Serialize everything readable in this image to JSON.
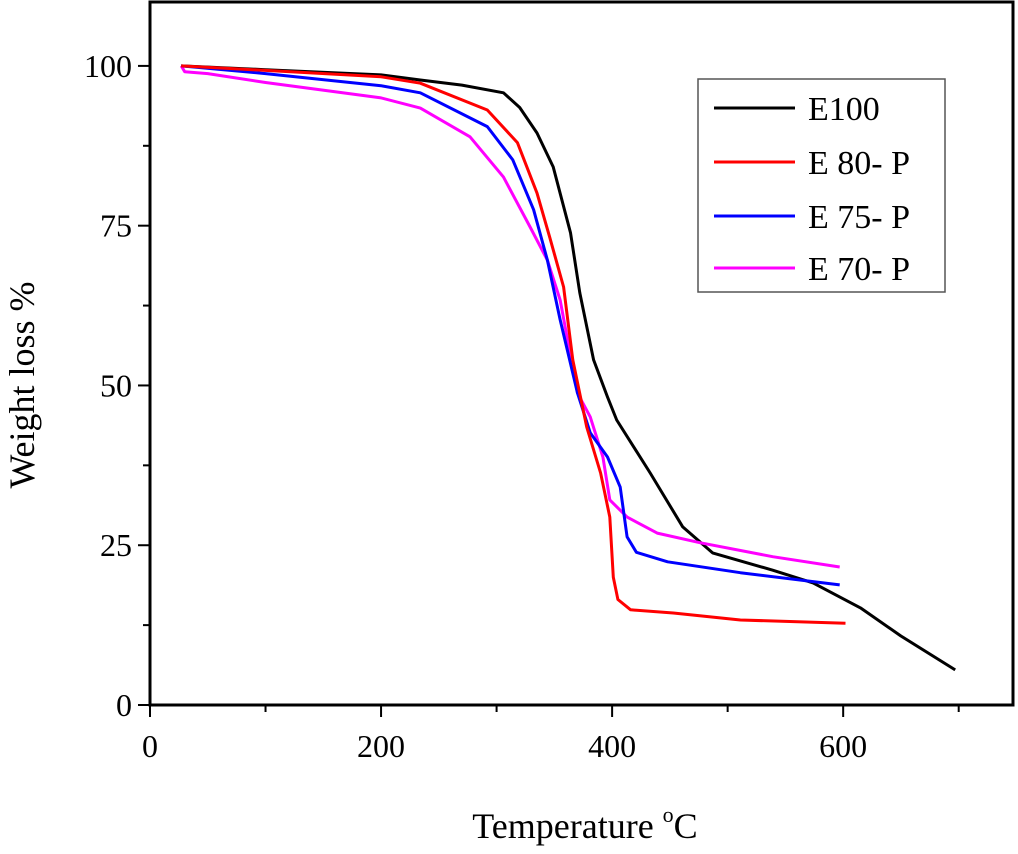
{
  "chart_data": {
    "type": "line",
    "title": "",
    "xlabel": "Temperature",
    "xlabel_unit_sup": "o",
    "xlabel_unit": "C",
    "ylabel": "Weight loss %",
    "xlim": [
      0,
      747
    ],
    "ylim": [
      0,
      110
    ],
    "xticks": [
      0,
      200,
      400,
      600
    ],
    "xminor": [
      100,
      300,
      500,
      700
    ],
    "yticks": [
      0,
      25,
      50,
      75,
      100
    ],
    "yminor": [
      12.5,
      37.5,
      62.5,
      87.5
    ],
    "grid": false,
    "legend_position": "top-right",
    "series": [
      {
        "name": "E100",
        "color": "#000000",
        "x": [
          27,
          100,
          200,
          234,
          270,
          306,
          320,
          335,
          349,
          364,
          372,
          384,
          396,
          404,
          433,
          461,
          487,
          539,
          574,
          615,
          650,
          697
        ],
        "y": [
          100,
          99.4,
          98.6,
          97.8,
          97,
          95.8,
          93.5,
          89.5,
          84.2,
          73.9,
          64.5,
          54,
          48.2,
          44.6,
          36.3,
          27.9,
          23.8,
          21.1,
          19.1,
          15.2,
          10.8,
          5.5
        ]
      },
      {
        "name": "E 80- P",
        "color": "#ff0000",
        "x": [
          27,
          100,
          200,
          234,
          292,
          318,
          335,
          346,
          358,
          366,
          378,
          390,
          398,
          401,
          405,
          416,
          453,
          511,
          602
        ],
        "y": [
          100,
          99.3,
          98.3,
          97.3,
          93.1,
          88,
          80.1,
          73.2,
          65.4,
          54,
          43.5,
          36.3,
          29.4,
          20,
          16.5,
          14.9,
          14.4,
          13.3,
          12.8
        ]
      },
      {
        "name": "E 75- P",
        "color": "#0000ff",
        "x": [
          27,
          100,
          200,
          234,
          292,
          314,
          332,
          344,
          355,
          370,
          381,
          396,
          407,
          413,
          421,
          448,
          511,
          597
        ],
        "y": [
          100,
          98.8,
          96.9,
          95.8,
          90.5,
          85.3,
          77.5,
          69.6,
          60.3,
          48.8,
          42.6,
          38.8,
          34.1,
          26.3,
          23.9,
          22.4,
          20.7,
          18.8
        ]
      },
      {
        "name": "E 70- P",
        "color": "#ff00ff",
        "x": [
          27,
          30,
          50,
          100,
          200,
          234,
          277,
          306,
          329,
          344,
          355,
          370,
          381,
          392,
          398,
          413,
          439,
          476,
          539,
          597
        ],
        "y": [
          100,
          99.1,
          98.8,
          97.4,
          95,
          93.4,
          88.9,
          82.6,
          74.8,
          69.6,
          63.4,
          48.8,
          45.1,
          38.8,
          32.1,
          29.4,
          26.9,
          25.4,
          23.2,
          21.6
        ]
      }
    ]
  }
}
